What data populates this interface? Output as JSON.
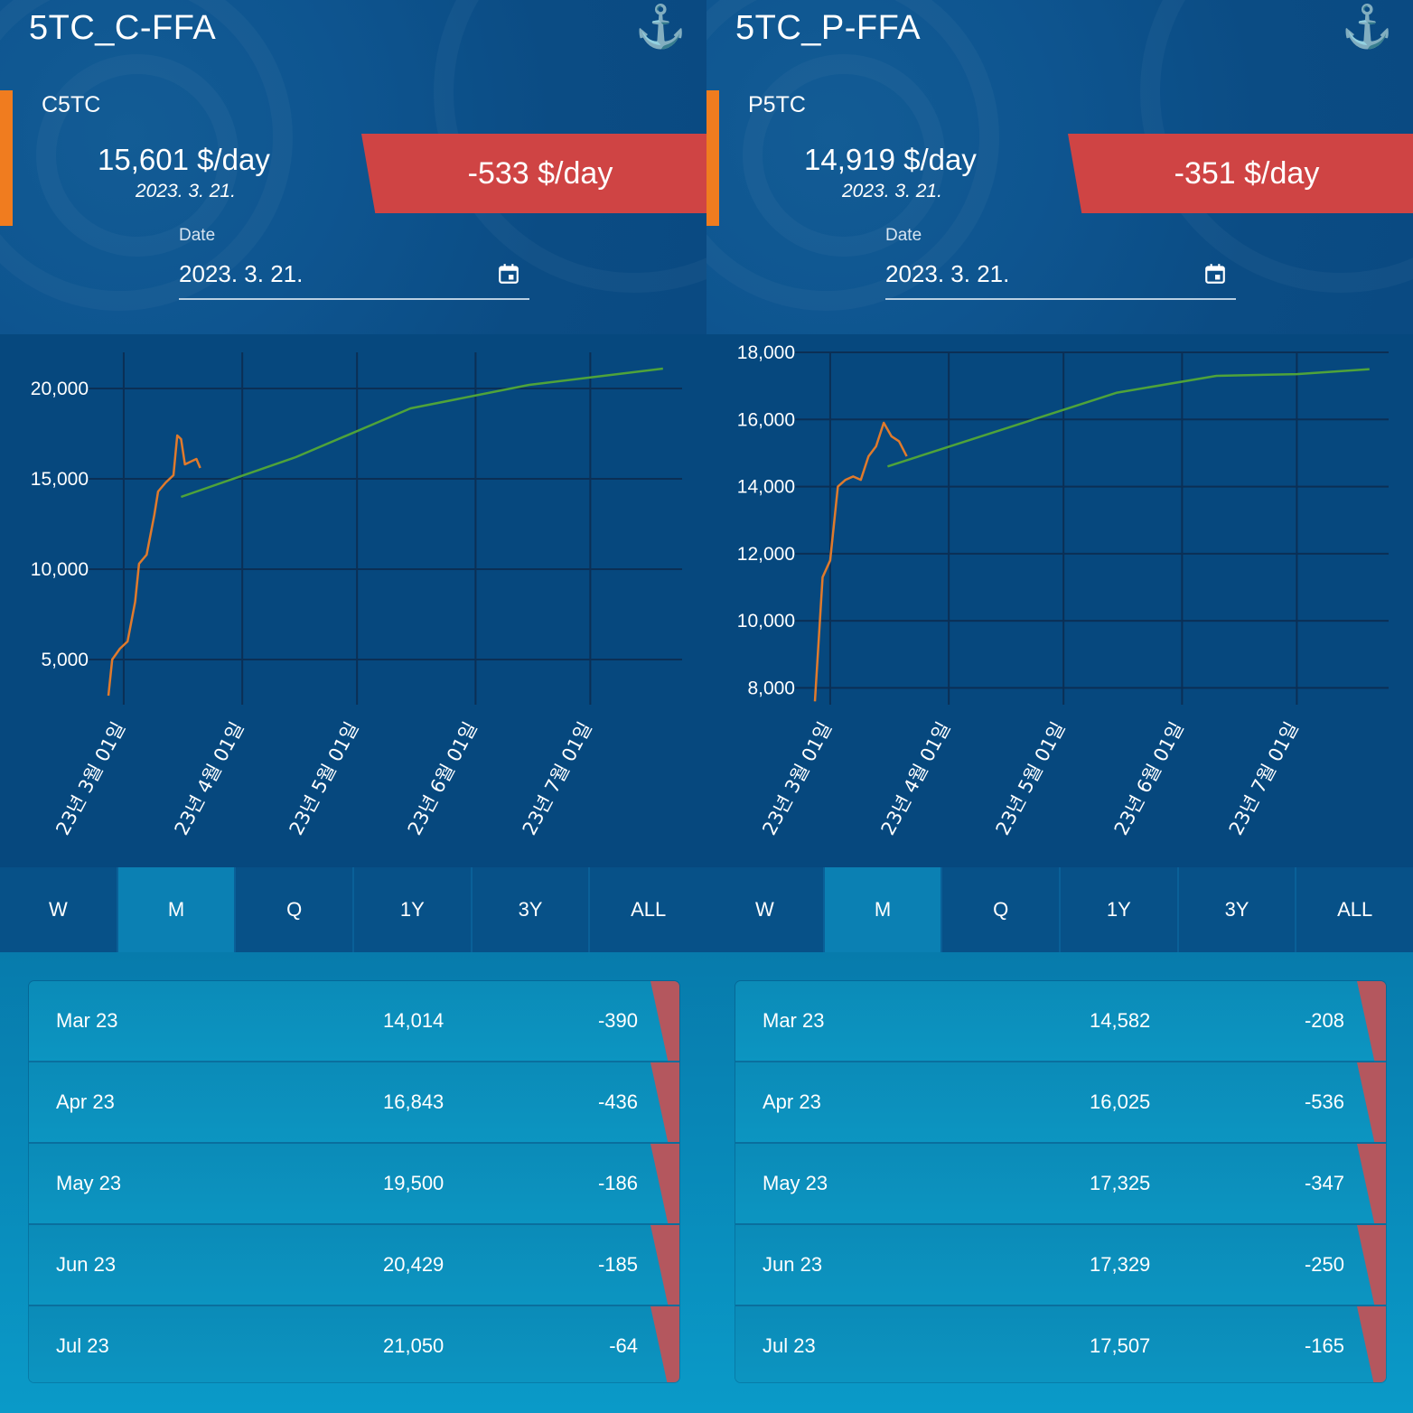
{
  "panels": [
    {
      "title": "5TC_C-FFA",
      "code": "C5TC",
      "price": "15,601 $/day",
      "price_date": "2023. 3. 21.",
      "change": "-533 $/day",
      "date_label": "Date",
      "date_value": "2023. 3. 21.",
      "tabs": [
        "W",
        "M",
        "Q",
        "1Y",
        "3Y",
        "ALL"
      ],
      "active_tab": "M",
      "rows": [
        {
          "month": "Mar 23",
          "value": "14,014",
          "diff": "-390"
        },
        {
          "month": "Apr 23",
          "value": "16,843",
          "diff": "-436"
        },
        {
          "month": "May 23",
          "value": "19,500",
          "diff": "-186"
        },
        {
          "month": "Jun 23",
          "value": "20,429",
          "diff": "-185"
        },
        {
          "month": "Jul 23",
          "value": "21,050",
          "diff": "-64"
        }
      ]
    },
    {
      "title": "5TC_P-FFA",
      "code": "P5TC",
      "price": "14,919 $/day",
      "price_date": "2023. 3. 21.",
      "change": "-351 $/day",
      "date_label": "Date",
      "date_value": "2023. 3. 21.",
      "tabs": [
        "W",
        "M",
        "Q",
        "1Y",
        "3Y",
        "ALL"
      ],
      "active_tab": "M",
      "rows": [
        {
          "month": "Mar 23",
          "value": "14,582",
          "diff": "-208"
        },
        {
          "month": "Apr 23",
          "value": "16,025",
          "diff": "-536"
        },
        {
          "month": "May 23",
          "value": "17,325",
          "diff": "-347"
        },
        {
          "month": "Jun 23",
          "value": "17,329",
          "diff": "-250"
        },
        {
          "month": "Jul 23",
          "value": "17,507",
          "diff": "-165"
        }
      ]
    }
  ],
  "colors": {
    "spot_line": "#e07a2c",
    "forward_line": "#4fa33a",
    "change_bg": "#cf4444",
    "accent_bar": "#f07c1f"
  },
  "icons": {
    "header": "anchor-icon",
    "date": "calendar-icon"
  },
  "chart_data": [
    {
      "type": "line",
      "x_ticks": [
        "23년 3월 01일",
        "23년 4월 01일",
        "23년 5월 01일",
        "23년 6월 01일",
        "23년 7월 01일"
      ],
      "y_ticks": [
        "5,000",
        "10,000",
        "15,000",
        "20,000"
      ],
      "ylim": [
        2500,
        22000
      ],
      "xlim": [
        "2023-02-25",
        "2023-07-25"
      ],
      "grid": true,
      "series": [
        {
          "role": "spot",
          "x": [
            "2023-02-25",
            "2023-02-26",
            "2023-02-28",
            "2023-03-02",
            "2023-03-04",
            "2023-03-05",
            "2023-03-07",
            "2023-03-09",
            "2023-03-10",
            "2023-03-12",
            "2023-03-14",
            "2023-03-15",
            "2023-03-16",
            "2023-03-17",
            "2023-03-18",
            "2023-03-20",
            "2023-03-21"
          ],
          "values": [
            3000,
            5000,
            5600,
            6000,
            8200,
            10300,
            10800,
            13000,
            14300,
            14800,
            15200,
            17400,
            17200,
            15800,
            15900,
            16100,
            15600
          ]
        },
        {
          "role": "forward",
          "x": [
            "2023-03-16",
            "2023-04-15",
            "2023-05-15",
            "2023-06-15",
            "2023-07-20"
          ],
          "values": [
            14000,
            16200,
            18900,
            20200,
            21100
          ]
        }
      ]
    },
    {
      "type": "line",
      "x_ticks": [
        "23년 3월 01일",
        "23년 4월 01일",
        "23년 5월 01일",
        "23년 6월 01일",
        "23년 7월 01일"
      ],
      "y_ticks": [
        "8,000",
        "10,000",
        "12,000",
        "14,000",
        "16,000",
        "18,000"
      ],
      "ylim": [
        7500,
        18000
      ],
      "xlim": [
        "2023-02-25",
        "2023-07-25"
      ],
      "grid": true,
      "series": [
        {
          "role": "spot",
          "x": [
            "2023-02-25",
            "2023-02-27",
            "2023-03-01",
            "2023-03-03",
            "2023-03-05",
            "2023-03-07",
            "2023-03-09",
            "2023-03-11",
            "2023-03-13",
            "2023-03-15",
            "2023-03-16",
            "2023-03-17",
            "2023-03-19",
            "2023-03-21"
          ],
          "values": [
            7600,
            11300,
            11800,
            14000,
            14200,
            14300,
            14200,
            14900,
            15200,
            15900,
            15700,
            15500,
            15350,
            14900
          ]
        },
        {
          "role": "forward",
          "x": [
            "2023-03-16",
            "2023-04-15",
            "2023-05-15",
            "2023-06-10",
            "2023-07-01",
            "2023-07-20"
          ],
          "values": [
            14600,
            15700,
            16800,
            17300,
            17350,
            17500
          ]
        }
      ]
    }
  ]
}
